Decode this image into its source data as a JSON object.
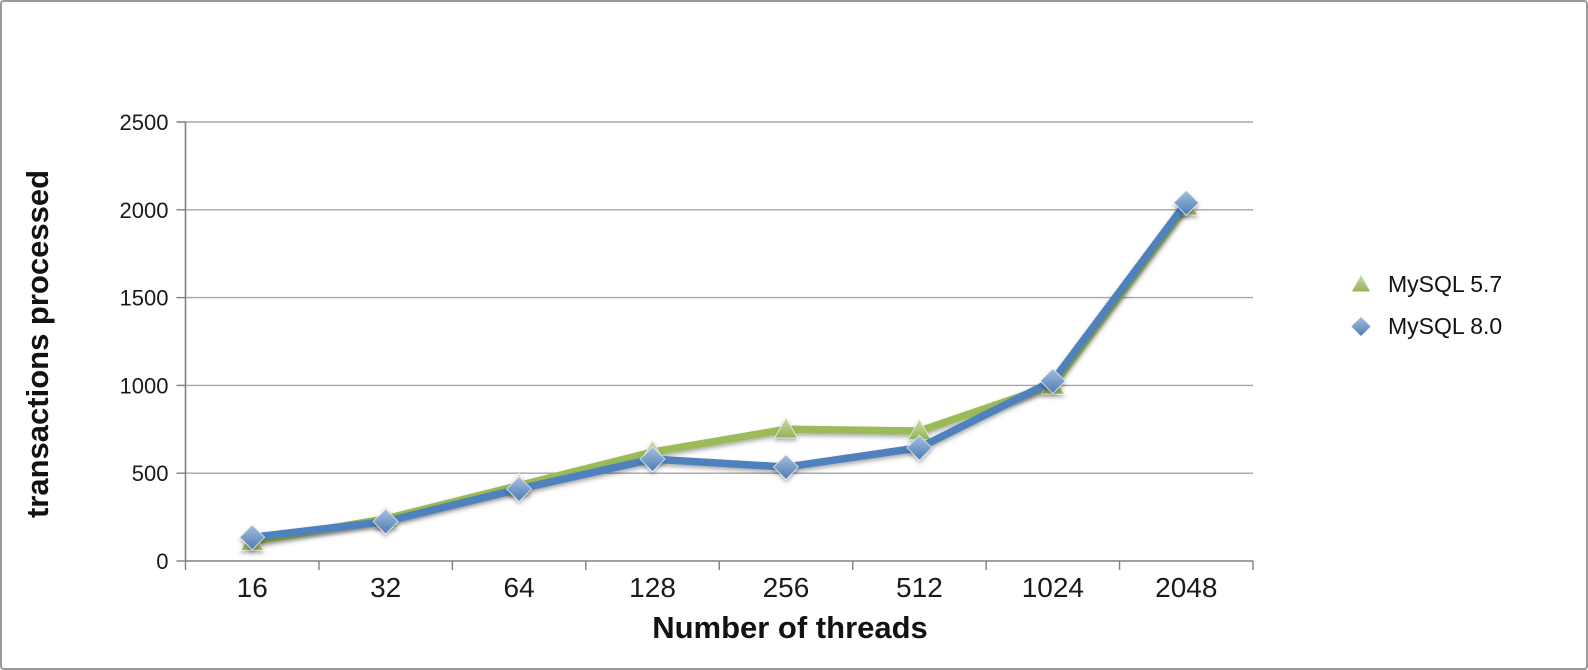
{
  "chart_data": {
    "type": "line",
    "title": "",
    "xlabel": "Number of threads",
    "ylabel": "transactions processed",
    "categories": [
      "16",
      "32",
      "64",
      "128",
      "256",
      "512",
      "1024",
      "2048"
    ],
    "series": [
      {
        "name": "MySQL 5.7",
        "color": "#9BBB59",
        "marker": "triangle",
        "values": [
          110,
          240,
          430,
          620,
          750,
          740,
          1000,
          2020
        ]
      },
      {
        "name": "MySQL 8.0",
        "color": "#4F81BD",
        "marker": "diamond",
        "values": [
          135,
          225,
          410,
          580,
          535,
          645,
          1025,
          2040
        ]
      }
    ],
    "ylim": [
      0,
      2500
    ],
    "yticks": [
      0,
      500,
      1000,
      1500,
      2000,
      2500
    ],
    "grid": "horizontal",
    "grid_color": "#A6A6A6",
    "axis_color": "#808080",
    "tick_label_color": "#1a1a1a",
    "legend_position": "right"
  }
}
